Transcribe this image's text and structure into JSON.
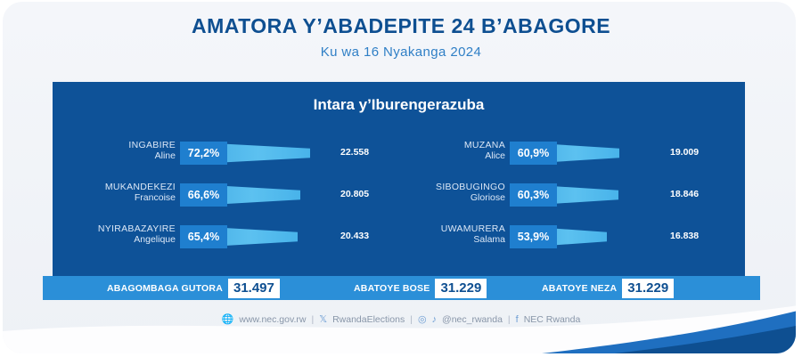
{
  "title": "AMATORA Y’ABADEPITE 24 B’ABAGORE",
  "subtitle": "Ku wa 16 Nyakanga 2024",
  "panel_title": "Intara y’Iburengerazuba",
  "chart_data": {
    "type": "bar",
    "title": "Intara y’Iburengerazuba",
    "series": [
      {
        "candidates": [
          {
            "last": "INGABIRE",
            "first": "Aline",
            "percent_label": "72,2%",
            "percent": 72.2,
            "votes_label": "22.558",
            "votes": 22558
          },
          {
            "last": "MUKANDEKEZI",
            "first": "Francoise",
            "percent_label": "66,6%",
            "percent": 66.6,
            "votes_label": "20.805",
            "votes": 20805
          },
          {
            "last": "NYIRABAZAYIRE",
            "first": "Angelique",
            "percent_label": "65,4%",
            "percent": 65.4,
            "votes_label": "20.433",
            "votes": 20433
          }
        ]
      },
      {
        "candidates": [
          {
            "last": "MUZANA",
            "first": "Alice",
            "percent_label": "60,9%",
            "percent": 60.9,
            "votes_label": "19.009",
            "votes": 19009
          },
          {
            "last": "SIBOBUGINGO",
            "first": "Gloriose",
            "percent_label": "60,3%",
            "percent": 60.3,
            "votes_label": "18.846",
            "votes": 18846
          },
          {
            "last": "UWAMURERA",
            "first": "Salama",
            "percent_label": "53,9%",
            "percent": 53.9,
            "votes_label": "16.838",
            "votes": 16838
          }
        ]
      }
    ]
  },
  "totals": {
    "registered_label": "ABAGOMBAGA GUTORA",
    "registered_value": "31.497",
    "voted_label": "ABATOYE BOSE",
    "voted_value": "31.229",
    "valid_label": "ABATOYE NEZA",
    "valid_value": "31.229"
  },
  "footer": {
    "website": "www.nec.gov.rw",
    "x_handle": "RwandaElections",
    "ig_tiktok_handle": "@nec_rwanda",
    "facebook": "NEC Rwanda",
    "x_glyph": "𝕏",
    "ig_glyph": "◎",
    "tiktok_glyph": "♪",
    "fb_glyph": "f",
    "web_glyph": "🌐",
    "separator": "|"
  },
  "colors": {
    "title": "#0e4f91",
    "panel": "#0e5298",
    "bar": "#48b3ea",
    "pct_box": "#1f7fcf",
    "totals_strip": "#2b8fd8"
  }
}
